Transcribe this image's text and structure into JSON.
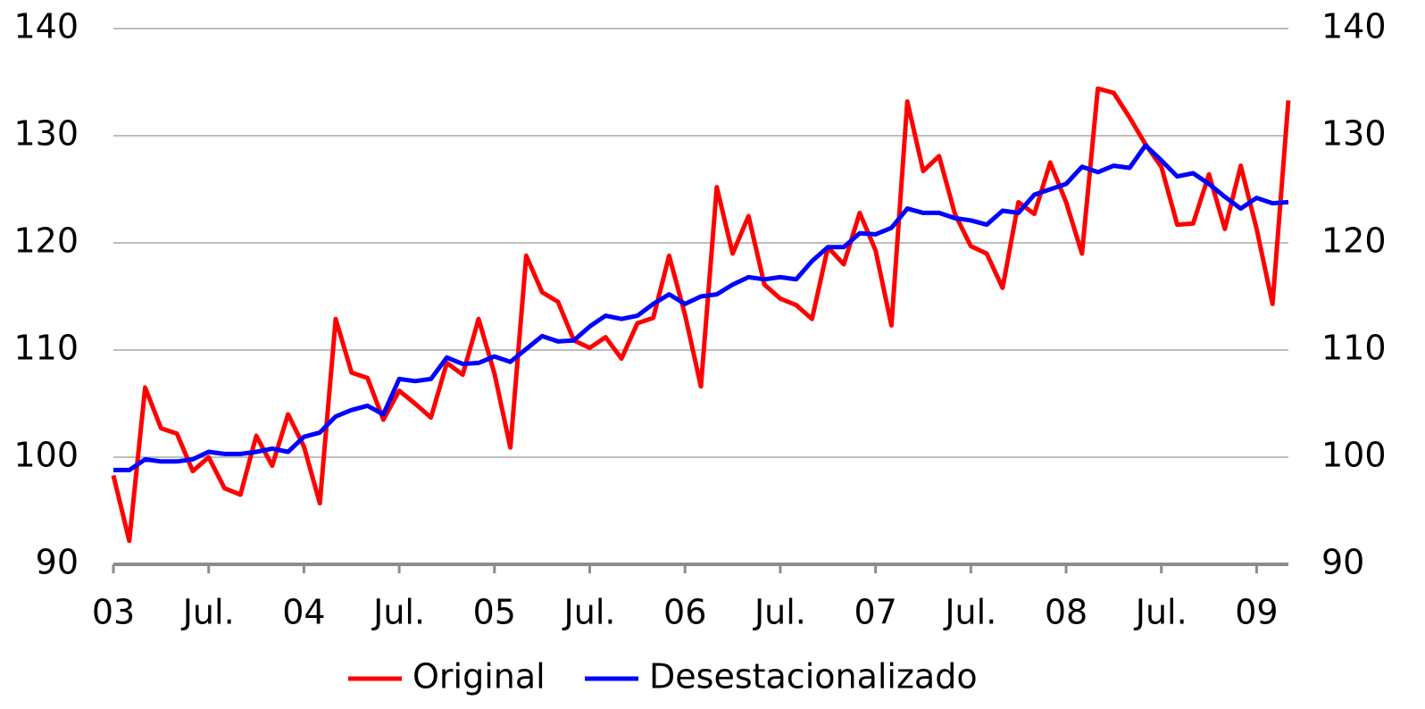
{
  "chart_data": {
    "type": "line",
    "categories": [
      "03",
      null,
      null,
      null,
      null,
      null,
      "Jul.",
      null,
      null,
      null,
      null,
      null,
      "04",
      null,
      null,
      null,
      null,
      null,
      "Jul.",
      null,
      null,
      null,
      null,
      null,
      "05",
      null,
      null,
      null,
      null,
      null,
      "Jul.",
      null,
      null,
      null,
      null,
      null,
      "06",
      null,
      null,
      null,
      null,
      null,
      "Jul.",
      null,
      null,
      null,
      null,
      null,
      "07",
      null,
      null,
      null,
      null,
      null,
      "Jul.",
      null,
      null,
      null,
      null,
      null,
      "08",
      null,
      null,
      null,
      null,
      null,
      "Jul.",
      null,
      null,
      null,
      null,
      null,
      "09",
      null,
      null
    ],
    "series": [
      {
        "name": "Original",
        "color": "#ff0000",
        "values": [
          98.3,
          92.2,
          106.5,
          102.7,
          102.2,
          98.7,
          100,
          97.1,
          96.5,
          102,
          99.2,
          104,
          101,
          95.7,
          112.9,
          107.9,
          107.4,
          103.5,
          106.2,
          105,
          103.7,
          108.8,
          107.7,
          112.9,
          107.8,
          100.9,
          118.8,
          115.4,
          114.5,
          110.9,
          110.2,
          111.2,
          109.2,
          112.5,
          113,
          118.8,
          113.3,
          106.6,
          125.2,
          119,
          122.5,
          116.1,
          114.8,
          114.2,
          112.9,
          119.6,
          118,
          122.8,
          119.3,
          112.3,
          133.2,
          126.7,
          128.1,
          122.7,
          119.7,
          119,
          115.8,
          123.8,
          122.7,
          127.5,
          123.8,
          119,
          134.4,
          134,
          131.7,
          129.2,
          127.1,
          121.7,
          121.8,
          126.4,
          121.3,
          127.2,
          121.3,
          114.3,
          133.3
        ]
      },
      {
        "name": "Desestacionalizado",
        "color": "#0000ff",
        "values": [
          98.8,
          98.8,
          99.8,
          99.6,
          99.6,
          99.8,
          100.5,
          100.3,
          100.3,
          100.5,
          100.8,
          100.5,
          101.9,
          102.3,
          103.8,
          104.4,
          104.8,
          104,
          107.3,
          107.1,
          107.3,
          109.3,
          108.7,
          108.8,
          109.4,
          108.9,
          110.1,
          111.3,
          110.8,
          110.9,
          112.2,
          113.2,
          112.9,
          113.2,
          114.3,
          115.2,
          114.3,
          115,
          115.2,
          116.1,
          116.8,
          116.6,
          116.8,
          116.6,
          118.3,
          119.6,
          119.6,
          120.9,
          120.8,
          121.4,
          123.2,
          122.8,
          122.8,
          122.3,
          122.1,
          121.7,
          123,
          122.8,
          124.5,
          125,
          125.5,
          127.1,
          126.6,
          127.2,
          127,
          129.1,
          127.7,
          126.2,
          126.5,
          125.5,
          124.3,
          123.2,
          124.2,
          123.7,
          123.8
        ]
      }
    ],
    "ylim": [
      90,
      140
    ],
    "yticks": [
      90,
      100,
      110,
      120,
      130,
      140
    ],
    "y2lim": [
      90,
      140
    ],
    "y2ticks": [
      90,
      100,
      110,
      120,
      130,
      140
    ],
    "grid": true,
    "legend": "bottom"
  }
}
